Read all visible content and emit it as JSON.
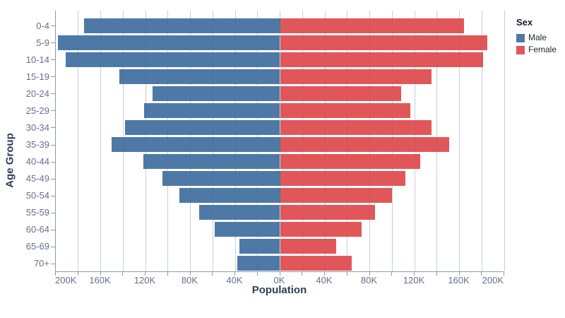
{
  "chart_data": {
    "type": "bar",
    "variant": "population_pyramid",
    "title": "",
    "xlabel": "Population",
    "ylabel": "Age Group",
    "categories": [
      "0-4",
      "5-9",
      "10-14",
      "15-19",
      "20-24",
      "25-29",
      "30-34",
      "35-39",
      "40-44",
      "45-49",
      "50-54",
      "55-59",
      "60-64",
      "65-69",
      "70+"
    ],
    "series": [
      {
        "name": "Male",
        "side": "left",
        "color": "#4e79a7",
        "values_thousands": [
          175,
          198,
          191,
          143,
          114,
          121,
          138,
          150,
          122,
          105,
          90,
          72,
          58,
          36,
          38
        ]
      },
      {
        "name": "Female",
        "side": "right",
        "color": "#e15759",
        "values_thousands": [
          164,
          185,
          181,
          135,
          108,
          116,
          135,
          151,
          125,
          112,
          100,
          85,
          73,
          50,
          64
        ]
      }
    ],
    "x_axis": {
      "unit": "K",
      "axis_max_thousands": 200,
      "gridline_step_thousands": 20,
      "label_step_thousands": 40,
      "tick_labels": [
        "200K",
        "160K",
        "120K",
        "80K",
        "40K",
        "0K",
        "40K",
        "80K",
        "120K",
        "160K",
        "200K"
      ]
    },
    "y_axis": {
      "title": "Age Group"
    },
    "legend": {
      "title": "Sex",
      "position": "top-right",
      "items": [
        {
          "label": "Male",
          "color": "#4e79a7"
        },
        {
          "label": "Female",
          "color": "#e15759"
        }
      ]
    },
    "grid": true,
    "theme": {
      "axis_text_color": "#66708c",
      "axis_title_color": "#2e3d59",
      "gridline_color": "#dadee6",
      "axis_line_color": "#8f98a8",
      "background": "#ffffff"
    }
  }
}
